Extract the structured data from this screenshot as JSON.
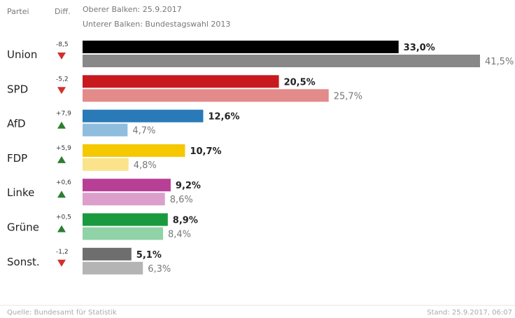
{
  "header": {
    "col_party": "Partei",
    "col_diff": "Diff.",
    "legend_top": "Oberer Balken: 25.9.2017",
    "legend_bottom": "Unterer Balken: Bundestagswahl 2013"
  },
  "footer": {
    "source": "Quelle: Bundesamt für Statistik",
    "stand": "Stand: 25.9.2017, 06:07"
  },
  "chart_data": {
    "type": "bar",
    "orientation": "horizontal",
    "categories": [
      "Union",
      "SPD",
      "AfD",
      "FDP",
      "Linke",
      "Grüne",
      "Sonst."
    ],
    "diff_labels": [
      "-8,5",
      "-5,2",
      "+7,9",
      "+5,9",
      "+0,6",
      "+0,5",
      "-1,2"
    ],
    "diff_direction": [
      "down",
      "down",
      "up",
      "up",
      "up",
      "up",
      "down"
    ],
    "arrow_colors": {
      "up": "#2e7d32",
      "down": "#d32f2f"
    },
    "series": [
      {
        "name": "Oberer Balken: 25.9.2017",
        "values": [
          33.0,
          20.5,
          12.6,
          10.7,
          9.2,
          8.9,
          5.1
        ],
        "labels": [
          "33,0%",
          "20,5%",
          "12,6%",
          "10,7%",
          "9,2%",
          "8,9%",
          "5,1%"
        ],
        "colors": [
          "#000000",
          "#c8191e",
          "#2a7ab8",
          "#f5c800",
          "#b83f96",
          "#1a9a3e",
          "#6e6e6e"
        ]
      },
      {
        "name": "Unterer Balken: Bundestagswahl 2013",
        "values": [
          41.5,
          25.7,
          4.7,
          4.8,
          8.6,
          8.4,
          6.3
        ],
        "labels": [
          "41,5%",
          "25,7%",
          "4,7%",
          "4,8%",
          "8,6%",
          "8,4%",
          "6,3%"
        ],
        "colors": [
          "#888888",
          "#e38a8a",
          "#8fbddd",
          "#fae38a",
          "#dc9fcc",
          "#8fd3a6",
          "#b4b4b4"
        ]
      }
    ],
    "xlim": [
      0,
      41.5
    ],
    "grid": false,
    "legend": "top"
  }
}
